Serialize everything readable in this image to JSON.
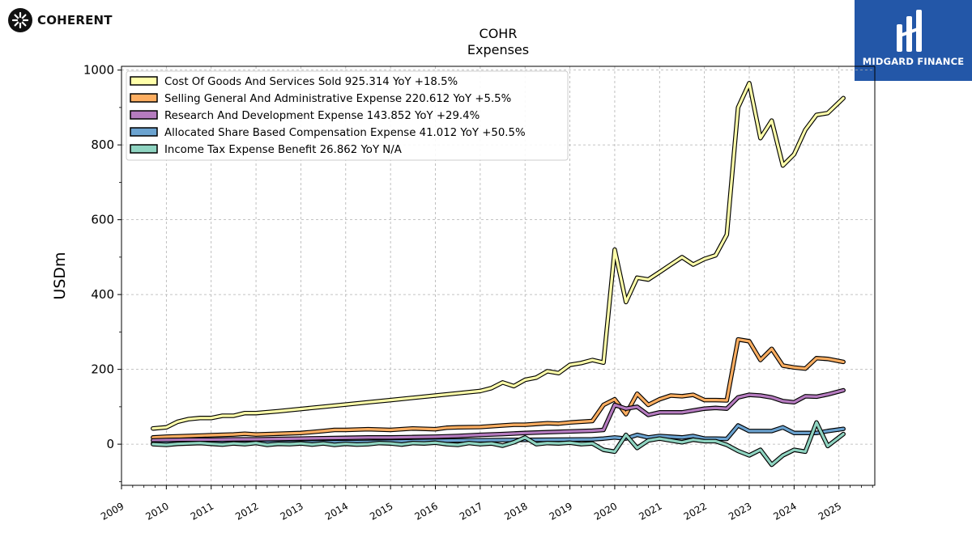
{
  "header": {
    "company_logo_text": "COHERENT",
    "brand_text": "MIDGARD FINANCE",
    "title": "COHR",
    "subtitle": "Expenses"
  },
  "chart_data": {
    "type": "line",
    "title": "COHR",
    "subtitle": "Expenses",
    "xlabel": "",
    "ylabel": "USDm",
    "xlim": [
      2009.0,
      2025.8
    ],
    "ylim": [
      -110,
      1010
    ],
    "x_ticks": [
      "2009",
      "2010",
      "2011",
      "2012",
      "2013",
      "2014",
      "2015",
      "2016",
      "2017",
      "2018",
      "2019",
      "2020",
      "2021",
      "2022",
      "2023",
      "2024",
      "2025"
    ],
    "y_ticks": [
      0,
      200,
      400,
      600,
      800,
      1000
    ],
    "grid": true,
    "legend_position": "top-left",
    "series": [
      {
        "name": "Cost Of Goods And Services Sold",
        "legend_label": "Cost Of Goods And Services Sold  925.314 YoY +18.5%",
        "color": "#ffffaa",
        "points": [
          [
            2009.7,
            42
          ],
          [
            2010.0,
            45
          ],
          [
            2010.25,
            60
          ],
          [
            2010.5,
            67
          ],
          [
            2010.75,
            70
          ],
          [
            2011.0,
            70
          ],
          [
            2011.25,
            76
          ],
          [
            2011.5,
            76
          ],
          [
            2011.75,
            83
          ],
          [
            2012.0,
            83
          ],
          [
            2012.5,
            88
          ],
          [
            2013.0,
            94
          ],
          [
            2013.5,
            100
          ],
          [
            2014.0,
            106
          ],
          [
            2014.5,
            112
          ],
          [
            2015.0,
            118
          ],
          [
            2015.5,
            124
          ],
          [
            2016.0,
            130
          ],
          [
            2016.5,
            136
          ],
          [
            2017.0,
            142
          ],
          [
            2017.25,
            150
          ],
          [
            2017.5,
            165
          ],
          [
            2017.75,
            155
          ],
          [
            2018.0,
            172
          ],
          [
            2018.25,
            178
          ],
          [
            2018.5,
            195
          ],
          [
            2018.75,
            190
          ],
          [
            2019.0,
            212
          ],
          [
            2019.25,
            217
          ],
          [
            2019.5,
            225
          ],
          [
            2019.75,
            218
          ],
          [
            2020.0,
            520
          ],
          [
            2020.25,
            380
          ],
          [
            2020.5,
            445
          ],
          [
            2020.75,
            440
          ],
          [
            2021.0,
            460
          ],
          [
            2021.25,
            480
          ],
          [
            2021.5,
            500
          ],
          [
            2021.75,
            480
          ],
          [
            2022.0,
            495
          ],
          [
            2022.25,
            505
          ],
          [
            2022.5,
            560
          ],
          [
            2022.75,
            900
          ],
          [
            2023.0,
            965
          ],
          [
            2023.25,
            818
          ],
          [
            2023.5,
            865
          ],
          [
            2023.75,
            745
          ],
          [
            2024.0,
            775
          ],
          [
            2024.25,
            840
          ],
          [
            2024.5,
            880
          ],
          [
            2024.75,
            885
          ],
          [
            2025.1,
            925
          ]
        ]
      },
      {
        "name": "Selling General And Administrative Expense",
        "legend_label": "Selling General And Administrative Expense  220.612 YoY +5.5%",
        "color": "#fdae61",
        "points": [
          [
            2009.7,
            18
          ],
          [
            2010.0,
            20
          ],
          [
            2010.5,
            22
          ],
          [
            2011.0,
            24
          ],
          [
            2011.5,
            26
          ],
          [
            2011.75,
            28
          ],
          [
            2012.0,
            26
          ],
          [
            2012.5,
            28
          ],
          [
            2013.0,
            30
          ],
          [
            2013.5,
            35
          ],
          [
            2013.75,
            38
          ],
          [
            2014.0,
            38
          ],
          [
            2014.5,
            40
          ],
          [
            2015.0,
            38
          ],
          [
            2015.5,
            42
          ],
          [
            2016.0,
            40
          ],
          [
            2016.25,
            44
          ],
          [
            2016.5,
            45
          ],
          [
            2017.0,
            46
          ],
          [
            2017.5,
            50
          ],
          [
            2017.75,
            52
          ],
          [
            2018.0,
            52
          ],
          [
            2018.5,
            56
          ],
          [
            2018.75,
            55
          ],
          [
            2019.0,
            58
          ],
          [
            2019.5,
            62
          ],
          [
            2019.75,
            105
          ],
          [
            2020.0,
            120
          ],
          [
            2020.25,
            80
          ],
          [
            2020.5,
            135
          ],
          [
            2020.75,
            105
          ],
          [
            2021.0,
            120
          ],
          [
            2021.25,
            130
          ],
          [
            2021.5,
            128
          ],
          [
            2021.75,
            132
          ],
          [
            2022.0,
            118
          ],
          [
            2022.25,
            118
          ],
          [
            2022.5,
            117
          ],
          [
            2022.75,
            280
          ],
          [
            2023.0,
            275
          ],
          [
            2023.25,
            225
          ],
          [
            2023.5,
            255
          ],
          [
            2023.75,
            210
          ],
          [
            2024.0,
            205
          ],
          [
            2024.25,
            202
          ],
          [
            2024.5,
            230
          ],
          [
            2024.75,
            228
          ],
          [
            2025.1,
            220
          ]
        ]
      },
      {
        "name": "Research And Development Expense",
        "legend_label": "Research And Development Expense  143.852 YoY +29.4%",
        "color": "#b57bbf",
        "points": [
          [
            2009.7,
            10
          ],
          [
            2010.0,
            11
          ],
          [
            2010.5,
            12
          ],
          [
            2011.0,
            12
          ],
          [
            2011.5,
            13
          ],
          [
            2012.0,
            13
          ],
          [
            2012.5,
            14
          ],
          [
            2013.0,
            15
          ],
          [
            2013.5,
            16
          ],
          [
            2014.0,
            17
          ],
          [
            2014.5,
            18
          ],
          [
            2015.0,
            18
          ],
          [
            2015.5,
            19
          ],
          [
            2016.0,
            20
          ],
          [
            2016.5,
            22
          ],
          [
            2017.0,
            25
          ],
          [
            2017.5,
            27
          ],
          [
            2018.0,
            30
          ],
          [
            2018.5,
            32
          ],
          [
            2019.0,
            34
          ],
          [
            2019.5,
            36
          ],
          [
            2019.75,
            38
          ],
          [
            2020.0,
            105
          ],
          [
            2020.25,
            95
          ],
          [
            2020.5,
            100
          ],
          [
            2020.75,
            78
          ],
          [
            2021.0,
            85
          ],
          [
            2021.25,
            85
          ],
          [
            2021.5,
            85
          ],
          [
            2021.75,
            90
          ],
          [
            2022.0,
            95
          ],
          [
            2022.25,
            97
          ],
          [
            2022.5,
            95
          ],
          [
            2022.75,
            125
          ],
          [
            2023.0,
            132
          ],
          [
            2023.25,
            130
          ],
          [
            2023.5,
            125
          ],
          [
            2023.75,
            115
          ],
          [
            2024.0,
            112
          ],
          [
            2024.25,
            128
          ],
          [
            2024.5,
            127
          ],
          [
            2024.75,
            133
          ],
          [
            2025.1,
            144
          ]
        ]
      },
      {
        "name": "Allocated Share Based Compensation Expense",
        "legend_label": "Allocated Share Based Compensation Expense  41.012 YoY +50.5%",
        "color": "#6ba3d0",
        "points": [
          [
            2009.7,
            2
          ],
          [
            2010.5,
            3
          ],
          [
            2011.5,
            3
          ],
          [
            2012.5,
            4
          ],
          [
            2013.5,
            5
          ],
          [
            2014.5,
            6
          ],
          [
            2015.5,
            8
          ],
          [
            2016.5,
            10
          ],
          [
            2017.5,
            11
          ],
          [
            2018.5,
            12
          ],
          [
            2019.5,
            13
          ],
          [
            2019.75,
            15
          ],
          [
            2020.0,
            18
          ],
          [
            2020.25,
            15
          ],
          [
            2020.5,
            25
          ],
          [
            2020.75,
            18
          ],
          [
            2021.0,
            22
          ],
          [
            2021.5,
            18
          ],
          [
            2021.75,
            22
          ],
          [
            2022.0,
            15
          ],
          [
            2022.25,
            15
          ],
          [
            2022.5,
            14
          ],
          [
            2022.75,
            50
          ],
          [
            2023.0,
            35
          ],
          [
            2023.25,
            35
          ],
          [
            2023.5,
            35
          ],
          [
            2023.75,
            45
          ],
          [
            2024.0,
            30
          ],
          [
            2024.25,
            30
          ],
          [
            2024.5,
            30
          ],
          [
            2024.75,
            35
          ],
          [
            2025.1,
            41
          ]
        ]
      },
      {
        "name": "Income Tax Expense Benefit",
        "legend_label": "Income Tax Expense Benefit  26.862 YoY N/A",
        "color": "#8fd4c1",
        "points": [
          [
            2009.7,
            0
          ],
          [
            2010.0,
            -2
          ],
          [
            2010.25,
            1
          ],
          [
            2010.5,
            2
          ],
          [
            2010.75,
            3
          ],
          [
            2011.0,
            1
          ],
          [
            2011.25,
            -1
          ],
          [
            2011.5,
            2
          ],
          [
            2011.75,
            0
          ],
          [
            2012.0,
            3
          ],
          [
            2012.25,
            -2
          ],
          [
            2012.5,
            1
          ],
          [
            2012.75,
            0
          ],
          [
            2013.0,
            2
          ],
          [
            2013.25,
            -1
          ],
          [
            2013.5,
            2
          ],
          [
            2013.75,
            -2
          ],
          [
            2014.0,
            1
          ],
          [
            2014.25,
            -1
          ],
          [
            2014.5,
            0
          ],
          [
            2014.75,
            3
          ],
          [
            2015.0,
            2
          ],
          [
            2015.25,
            -1
          ],
          [
            2015.5,
            3
          ],
          [
            2015.75,
            2
          ],
          [
            2016.0,
            4
          ],
          [
            2016.25,
            0
          ],
          [
            2016.5,
            -2
          ],
          [
            2016.75,
            3
          ],
          [
            2017.0,
            0
          ],
          [
            2017.25,
            2
          ],
          [
            2017.5,
            -4
          ],
          [
            2017.75,
            5
          ],
          [
            2018.0,
            18
          ],
          [
            2018.25,
            0
          ],
          [
            2018.5,
            3
          ],
          [
            2018.75,
            2
          ],
          [
            2019.0,
            4
          ],
          [
            2019.25,
            0
          ],
          [
            2019.5,
            2
          ],
          [
            2019.75,
            -15
          ],
          [
            2020.0,
            -20
          ],
          [
            2020.25,
            25
          ],
          [
            2020.5,
            -10
          ],
          [
            2020.75,
            10
          ],
          [
            2021.0,
            15
          ],
          [
            2021.25,
            10
          ],
          [
            2021.5,
            5
          ],
          [
            2021.75,
            12
          ],
          [
            2022.0,
            8
          ],
          [
            2022.25,
            8
          ],
          [
            2022.5,
            -2
          ],
          [
            2022.75,
            -18
          ],
          [
            2023.0,
            -30
          ],
          [
            2023.25,
            -15
          ],
          [
            2023.5,
            -55
          ],
          [
            2023.75,
            -30
          ],
          [
            2024.0,
            -15
          ],
          [
            2024.25,
            -20
          ],
          [
            2024.5,
            58
          ],
          [
            2024.75,
            -5
          ],
          [
            2025.1,
            27
          ]
        ]
      }
    ]
  }
}
